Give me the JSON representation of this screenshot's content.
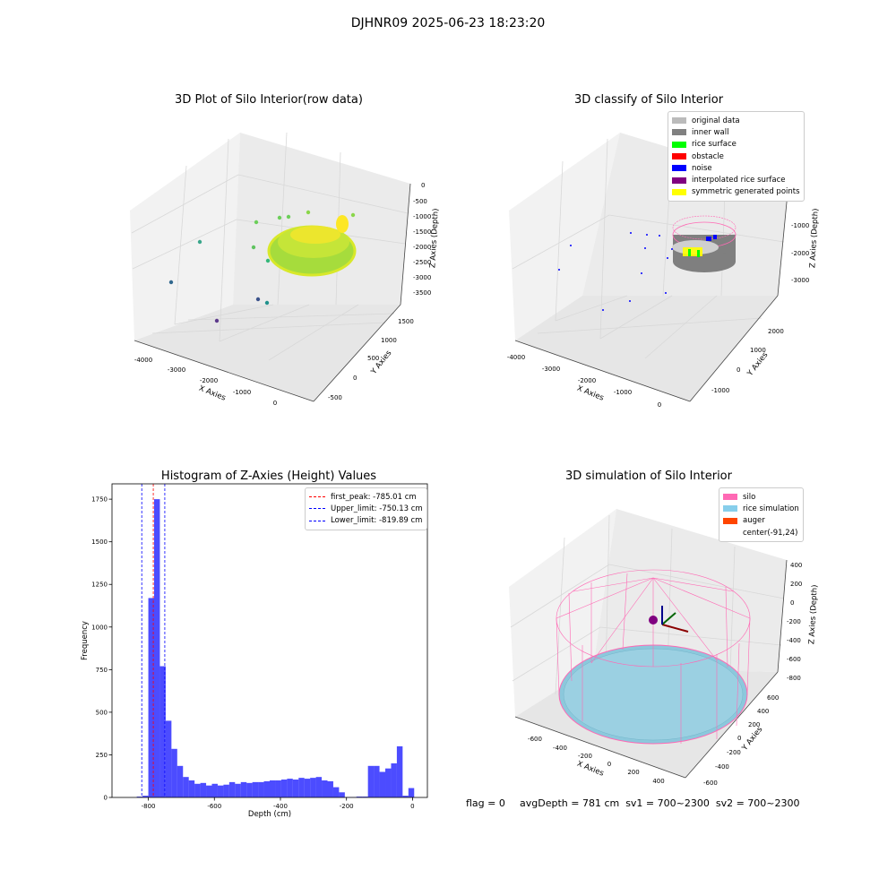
{
  "suptitle": "DJHNR09 2025-06-23 18:23:20",
  "chart_data": [
    {
      "type": "scatter3d",
      "title": "3D Plot of Silo Interior(row data)",
      "xlabel": "X Axies",
      "ylabel": "Y Axies",
      "zlabel": "Z Axies (Depth)",
      "xticks": [
        "-4000",
        "-3000",
        "-2000",
        "-1000",
        "0"
      ],
      "yticks": [
        "-500",
        "0",
        "500",
        "1000",
        "1500"
      ],
      "zticks": [
        "0",
        "-500",
        "-1000",
        "-1500",
        "-2000",
        "-2500",
        "-3000",
        "-3500"
      ],
      "colormap": [
        "#440154",
        "#31688e",
        "#35b779",
        "#b5de2b",
        "#fde725"
      ]
    },
    {
      "type": "scatter3d",
      "title": "3D classify of Silo Interior",
      "xlabel": "X Axies",
      "ylabel": "Y Axies",
      "zlabel": "Z Axies (Depth)",
      "xticks": [
        "-4000",
        "-3000",
        "-2000",
        "-1000",
        "0"
      ],
      "yticks": [
        "-1000",
        "0",
        "1000",
        "2000"
      ],
      "zticks": [
        "0",
        "-1000",
        "-2000",
        "-3000"
      ],
      "legend": [
        {
          "name": "original data",
          "color": "#bbbbbb"
        },
        {
          "name": "inner wall",
          "color": "#808080"
        },
        {
          "name": "rice surface",
          "color": "#00ff00"
        },
        {
          "name": "obstacle",
          "color": "#ff0000"
        },
        {
          "name": "noise",
          "color": "#0000ff"
        },
        {
          "name": "interpolated rice surface",
          "color": "#800080"
        },
        {
          "name": "symmetric generated points",
          "color": "#ffff00"
        }
      ]
    },
    {
      "type": "bar",
      "title": "Histogram of Z-Axies (Height) Values",
      "xlabel": "Depth (cm)",
      "ylabel": "Frequency",
      "xlim": [
        -910,
        45
      ],
      "ylim": [
        0,
        1840
      ],
      "xticks": [
        -800,
        -600,
        -400,
        -200,
        0
      ],
      "yticks": [
        0,
        250,
        500,
        750,
        1000,
        1250,
        1500,
        1750
      ],
      "bar_color": "#0000ff",
      "bin_width": 17.5,
      "bins": [
        [
          -835,
          5
        ],
        [
          -817.5,
          10
        ],
        [
          -800,
          1170
        ],
        [
          -782.5,
          1750
        ],
        [
          -765,
          770
        ],
        [
          -747.5,
          450
        ],
        [
          -730,
          285
        ],
        [
          -712.5,
          185
        ],
        [
          -695,
          120
        ],
        [
          -677.5,
          100
        ],
        [
          -660,
          80
        ],
        [
          -642.5,
          85
        ],
        [
          -625,
          70
        ],
        [
          -607.5,
          80
        ],
        [
          -590,
          70
        ],
        [
          -572.5,
          75
        ],
        [
          -555,
          90
        ],
        [
          -537.5,
          80
        ],
        [
          -520,
          90
        ],
        [
          -502.5,
          85
        ],
        [
          -485,
          90
        ],
        [
          -467.5,
          90
        ],
        [
          -450,
          95
        ],
        [
          -432.5,
          100
        ],
        [
          -415,
          100
        ],
        [
          -397.5,
          105
        ],
        [
          -380,
          110
        ],
        [
          -362.5,
          105
        ],
        [
          -345,
          115
        ],
        [
          -327.5,
          110
        ],
        [
          -310,
          115
        ],
        [
          -292.5,
          120
        ],
        [
          -275,
          100
        ],
        [
          -257.5,
          95
        ],
        [
          -240,
          60
        ],
        [
          -222.5,
          30
        ],
        [
          -205,
          2
        ],
        [
          -187.5,
          2
        ],
        [
          -170,
          5
        ],
        [
          -152.5,
          5
        ],
        [
          -135,
          185
        ],
        [
          -117.5,
          185
        ],
        [
          -100,
          150
        ],
        [
          -82.5,
          170
        ],
        [
          -65,
          200
        ],
        [
          -47.5,
          300
        ],
        [
          -30,
          10
        ],
        [
          -12.5,
          55
        ]
      ],
      "lines": [
        {
          "name": "first_peak: -785.01 cm",
          "x": -785.01,
          "color": "#ff0000"
        },
        {
          "name": "Upper_limit: -750.13 cm",
          "x": -750.13,
          "color": "#0000ff"
        },
        {
          "name": "Lower_limit: -819.89 cm",
          "x": -819.89,
          "color": "#0000ff"
        }
      ]
    },
    {
      "type": "surface3d",
      "title": "3D simulation of Silo Interior",
      "xlabel": "X Axies",
      "ylabel": "Y Axies",
      "zlabel": "Z Axies (Depth)",
      "xticks": [
        "-600",
        "-400",
        "-200",
        "0",
        "200",
        "400"
      ],
      "yticks": [
        "-600",
        "-400",
        "-200",
        "0",
        "200",
        "400",
        "600"
      ],
      "zticks": [
        "400",
        "200",
        "0",
        "-200",
        "-400",
        "-600",
        "-800"
      ],
      "legend": [
        {
          "name": "silo",
          "color": "#ff69b4"
        },
        {
          "name": "rice simulation",
          "color": "#87ceeb"
        },
        {
          "name": "auger",
          "color": "#ff4500"
        },
        {
          "name": "center(-91,24)",
          "color": "#ffffff"
        }
      ]
    }
  ],
  "footer": {
    "flag": "flag = 0",
    "stats": "avgDepth = 781 cm  sv1 = 700~2300  sv2 = 700~2300"
  }
}
